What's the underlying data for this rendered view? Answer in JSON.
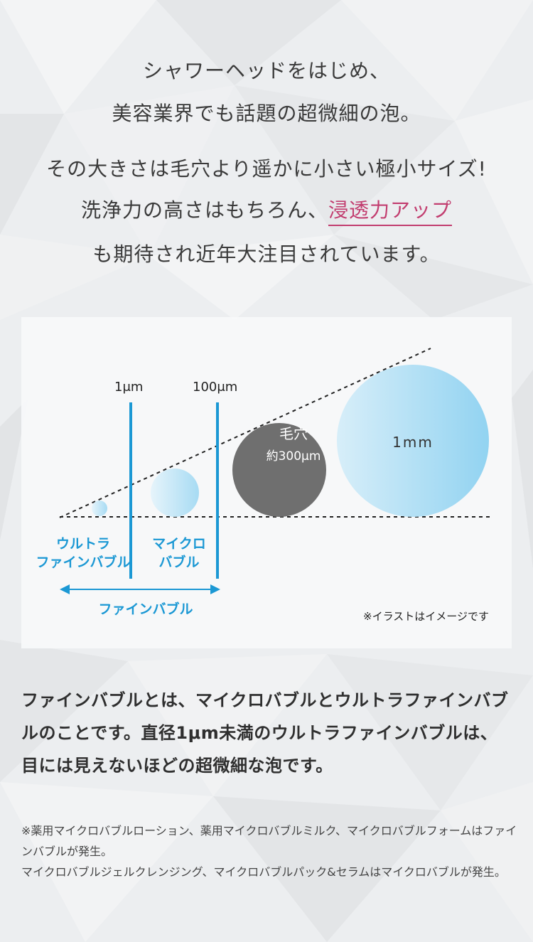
{
  "intro": {
    "line1": "シャワーヘッドをはじめ、",
    "line2": "美容業界でも話題の超微細の泡。",
    "line3": "その大きさは毛穴より遥かに小さい極小サイズ!",
    "line4_prefix": "洗浄力の高さはもちろん、",
    "line4_accent": "浸透力アップ",
    "line5": "も期待され近年大注目されています。"
  },
  "diagram": {
    "scale_1um": "1μm",
    "scale_100um": "100μm",
    "ultra_line1": "ウルトラ",
    "ultra_line2": "ファインバブル",
    "micro_line1": "マイクロ",
    "micro_line2": "バブル",
    "pore_label": "毛穴",
    "pore_size": "約300μm",
    "mm_label": "1mm",
    "fine_bubble_label": "ファインバブル",
    "note": "※イラストはイメージです"
  },
  "body": "ファインバブルとは、マイクロバブルとウルトラファインバブルのことです。直径1μm未満のウルトラファインバブルは、目には見えないほどの超微細な泡です。",
  "footnote": {
    "line1": "※薬用マイクロバブルローション、薬用マイクロバブルミルク、マイクロバブルフォームはファインバブルが発生。",
    "line2": "マイクロバブルジェルクレンジング、マイクロバブルパック&セラムはマイクロバブルが発生。"
  },
  "colors": {
    "accent": "#c23d6f",
    "blue": "#1b98d4",
    "pore": "#6f6f6f",
    "bubble_light": "#9fd6f2"
  }
}
